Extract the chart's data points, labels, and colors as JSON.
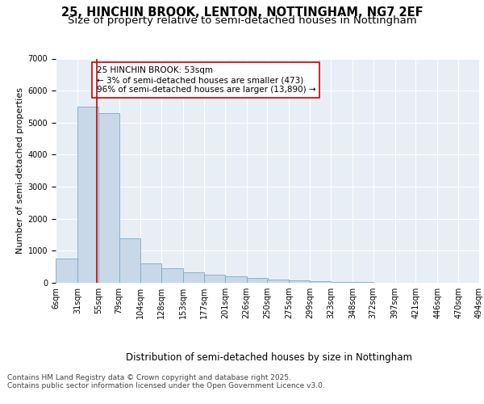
{
  "title_line1": "25, HINCHIN BROOK, LENTON, NOTTINGHAM, NG7 2EF",
  "title_line2": "Size of property relative to semi-detached houses in Nottingham",
  "xlabel": "Distribution of semi-detached houses by size in Nottingham",
  "ylabel": "Number of semi-detached properties",
  "annotation_title": "25 HINCHIN BROOK: 53sqm",
  "annotation_line2": "← 3% of semi-detached houses are smaller (473)",
  "annotation_line3": "96% of semi-detached houses are larger (13,890) →",
  "footer_line1": "Contains HM Land Registry data © Crown copyright and database right 2025.",
  "footer_line2": "Contains public sector information licensed under the Open Government Licence v3.0.",
  "property_size": 53,
  "bar_left_edges": [
    6,
    31,
    55,
    79,
    104,
    128,
    153,
    177,
    201,
    226,
    250,
    275,
    299,
    323,
    348,
    372,
    397,
    421,
    446,
    470
  ],
  "bar_widths": [
    25,
    24,
    24,
    25,
    24,
    25,
    24,
    24,
    25,
    24,
    25,
    24,
    24,
    25,
    24,
    25,
    24,
    25,
    24,
    24
  ],
  "bar_heights": [
    750,
    5500,
    5300,
    1400,
    600,
    450,
    330,
    260,
    200,
    160,
    110,
    70,
    45,
    28,
    18,
    12,
    8,
    5,
    3,
    2
  ],
  "tick_labels": [
    "6sqm",
    "31sqm",
    "55sqm",
    "79sqm",
    "104sqm",
    "128sqm",
    "153sqm",
    "177sqm",
    "201sqm",
    "226sqm",
    "250sqm",
    "275sqm",
    "299sqm",
    "323sqm",
    "348sqm",
    "372sqm",
    "397sqm",
    "421sqm",
    "446sqm",
    "470sqm",
    "494sqm"
  ],
  "bar_color": "#c8d8e8",
  "bar_edge_color": "#7aaac8",
  "marker_line_color": "#cc0000",
  "annotation_box_edge_color": "#cc0000",
  "background_color": "#e8eef5",
  "grid_color": "#ffffff",
  "ylim": [
    0,
    7000
  ],
  "yticks": [
    0,
    1000,
    2000,
    3000,
    4000,
    5000,
    6000,
    7000
  ],
  "title_fontsize": 10.5,
  "subtitle_fontsize": 9.5,
  "axis_label_fontsize": 8.5,
  "ylabel_fontsize": 8,
  "tick_fontsize": 7,
  "annotation_fontsize": 7.5,
  "footer_fontsize": 6.5
}
